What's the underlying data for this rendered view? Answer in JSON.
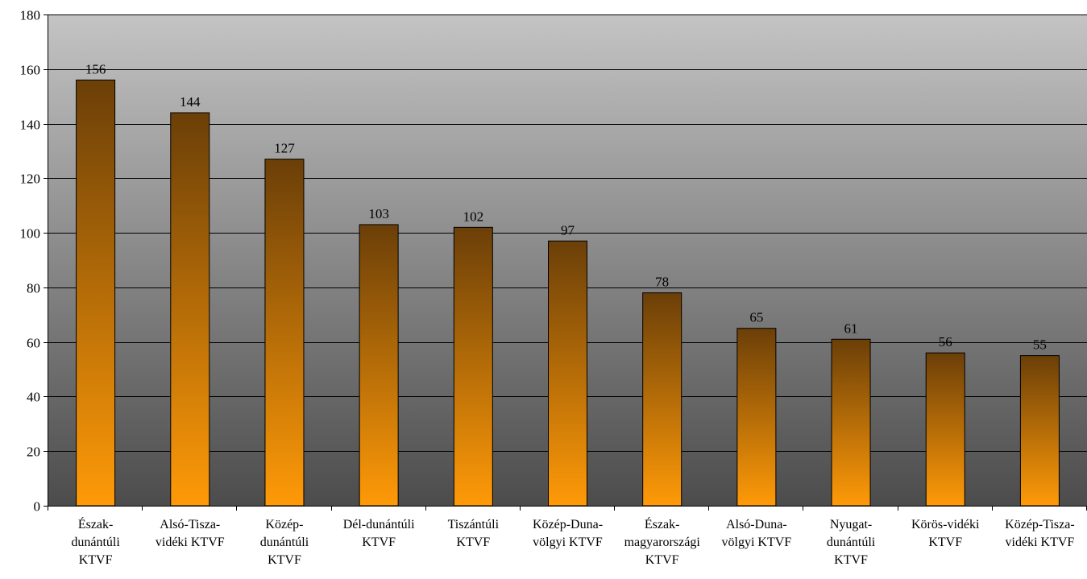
{
  "chart_data": {
    "type": "bar",
    "categories": [
      "Észak-dunántúli KTVF",
      "Alsó-Tisza-vidéki KTVF",
      "Közép-dunántúli KTVF",
      "Dél-dunántúli KTVF",
      "Tiszántúli KTVF",
      "Közép-Duna-völgyi KTVF",
      "Észak-magyarországi KTVF",
      "Alsó-Duna-völgyi KTVF",
      "Nyugat-dunántúli KTVF",
      "Körös-vidéki KTVF",
      "Közép-Tisza-vidéki KTVF"
    ],
    "category_lines": [
      [
        "Észak-",
        "dunántúli",
        "KTVF"
      ],
      [
        "Alsó-Tisza-",
        "vidéki KTVF"
      ],
      [
        "Közép-",
        "dunántúli",
        "KTVF"
      ],
      [
        "Dél-dunántúli",
        "KTVF"
      ],
      [
        "Tiszántúli",
        "KTVF"
      ],
      [
        "Közép-Duna-",
        "völgyi KTVF"
      ],
      [
        "Észak-",
        "magyarországi",
        "KTVF"
      ],
      [
        "Alsó-Duna-",
        "völgyi KTVF"
      ],
      [
        "Nyugat-",
        "dunántúli",
        "KTVF"
      ],
      [
        "Körös-vidéki",
        "KTVF"
      ],
      [
        "Közép-Tisza-",
        "vidéki KTVF"
      ]
    ],
    "values": [
      156,
      144,
      127,
      103,
      102,
      97,
      78,
      65,
      61,
      56,
      55
    ],
    "data_labels": [
      "156",
      "144",
      "127",
      "103",
      "102",
      "97",
      "78",
      "65",
      "61",
      "56",
      "55"
    ],
    "title": "",
    "xlabel": "",
    "ylabel": "",
    "ylim": [
      0,
      180
    ],
    "yticks": [
      0,
      20,
      40,
      60,
      80,
      100,
      120,
      140,
      160,
      180
    ],
    "grid": true,
    "legend": "none",
    "colors": {
      "plot_bg_top": "#c4c4c4",
      "plot_bg_bottom": "#4c4c4c",
      "bar_top": "#6b3f08",
      "bar_bottom": "#ff9a08",
      "gridline": "#000000"
    }
  }
}
